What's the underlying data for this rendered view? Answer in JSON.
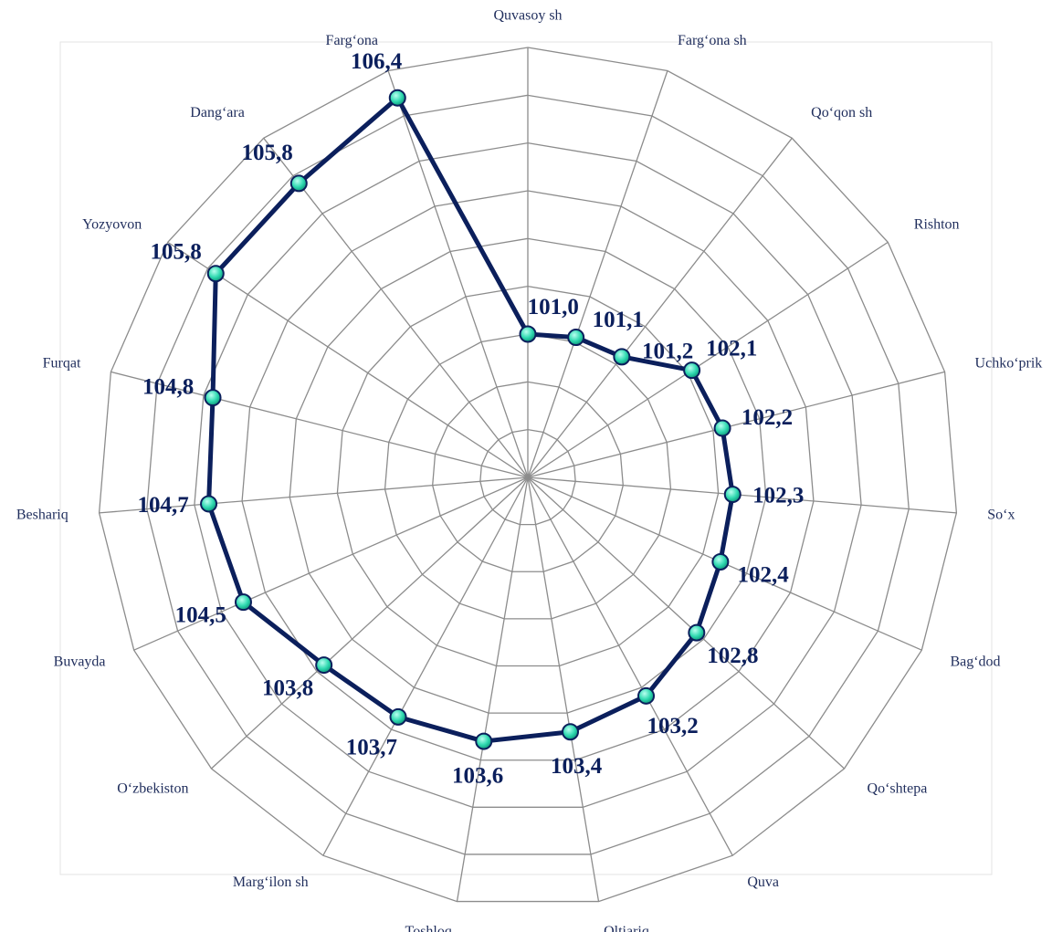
{
  "chart_data": {
    "type": "radar",
    "categories": [
      "Quvasoy sh",
      "Farg‘ona sh",
      "Qo‘qon sh",
      "Rishton",
      "Uchko‘prik",
      "So‘x",
      "Bag‘dod",
      "Qo‘shtepa",
      "Quva",
      "Oltiariq",
      "Toshloq",
      "Marg‘ilon sh",
      "O‘zbekiston",
      "Buvayda",
      "Beshariq",
      "Furqat",
      "Yozyovon",
      "Dang‘ara",
      "Farg‘ona"
    ],
    "values": [
      101.0,
      101.1,
      101.2,
      102.1,
      102.2,
      102.3,
      102.4,
      102.8,
      103.2,
      103.4,
      103.6,
      103.7,
      103.8,
      104.5,
      104.7,
      104.8,
      105.8,
      105.8,
      106.4
    ],
    "value_labels": [
      "101,0",
      "101,1",
      "101,2",
      "102,1",
      "102,2",
      "102,3",
      "102,4",
      "102,8",
      "103,2",
      "103,4",
      "103,6",
      "103,7",
      "103,8",
      "104,5",
      "104,7",
      "104,8",
      "105,8",
      "105,8",
      "106,4"
    ],
    "color": "#0b1f5c",
    "marker_color": "#2fd9b0",
    "ylim": [
      98,
      107
    ],
    "yticks": [
      98,
      99,
      100,
      101,
      102,
      103,
      104,
      105,
      106,
      107
    ],
    "grid": true
  }
}
